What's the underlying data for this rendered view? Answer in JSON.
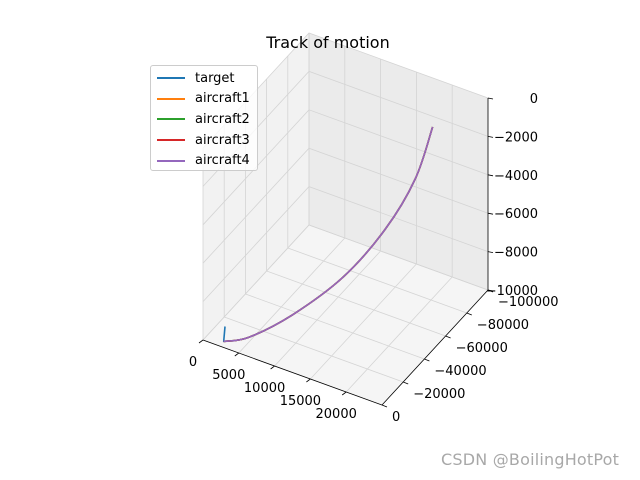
{
  "chart_data": {
    "type": "line3d",
    "title": "Track of motion",
    "xlabel": "",
    "ylabel": "",
    "zlabel": "",
    "xlim": [
      0,
      25000
    ],
    "ylim": [
      -100000,
      0
    ],
    "zlim": [
      -10000,
      0
    ],
    "x_ticks": [
      {
        "value": 0,
        "label": "0"
      },
      {
        "value": 5000,
        "label": "5000"
      },
      {
        "value": 10000,
        "label": "10000"
      },
      {
        "value": 15000,
        "label": "15000"
      },
      {
        "value": 20000,
        "label": "20000"
      }
    ],
    "y_ticks": [
      {
        "value": 0,
        "label": "0"
      },
      {
        "value": -20000,
        "label": "−20000"
      },
      {
        "value": -40000,
        "label": "−40000"
      },
      {
        "value": -60000,
        "label": "−60000"
      },
      {
        "value": -80000,
        "label": "−80000"
      },
      {
        "value": -100000,
        "label": "−100000"
      }
    ],
    "z_ticks": [
      {
        "value": 0,
        "label": "0"
      },
      {
        "value": -2000,
        "label": "−2000"
      },
      {
        "value": -4000,
        "label": "−4000"
      },
      {
        "value": -6000,
        "label": "−6000"
      },
      {
        "value": -8000,
        "label": "−8000"
      },
      {
        "value": -10000,
        "label": "−10000"
      }
    ],
    "legend_position": "upper-left",
    "series": [
      {
        "name": "target",
        "color": "#1f77b4",
        "points": [
          [
            1000,
            -14000,
            -10000
          ],
          [
            2300,
            -4000,
            -10000
          ],
          [
            6000,
            -2500,
            -9200
          ],
          [
            11000,
            -10000,
            -7800
          ],
          [
            16000,
            -24000,
            -6000
          ],
          [
            19500,
            -40000,
            -4000
          ],
          [
            21500,
            -55000,
            -2000
          ],
          [
            22000,
            -68000,
            0
          ]
        ]
      },
      {
        "name": "aircraft1",
        "color": "#ff7f0e",
        "points": [
          [
            2300,
            -4000,
            -10000
          ],
          [
            6000,
            -2500,
            -9200
          ],
          [
            11000,
            -10000,
            -7800
          ],
          [
            16000,
            -24000,
            -6000
          ],
          [
            19500,
            -40000,
            -4000
          ],
          [
            21500,
            -55000,
            -2000
          ],
          [
            22000,
            -68000,
            0
          ]
        ]
      },
      {
        "name": "aircraft2",
        "color": "#2ca02c",
        "points": [
          [
            2300,
            -4000,
            -10000
          ],
          [
            6000,
            -2500,
            -9200
          ],
          [
            11000,
            -10000,
            -7800
          ],
          [
            16000,
            -24000,
            -6000
          ],
          [
            19500,
            -40000,
            -4000
          ],
          [
            21500,
            -55000,
            -2000
          ],
          [
            22000,
            -68000,
            0
          ]
        ]
      },
      {
        "name": "aircraft3",
        "color": "#d62728",
        "points": [
          [
            2300,
            -4000,
            -10000
          ],
          [
            6000,
            -2500,
            -9200
          ],
          [
            11000,
            -10000,
            -7800
          ],
          [
            16000,
            -24000,
            -6000
          ],
          [
            19500,
            -40000,
            -4000
          ],
          [
            21500,
            -55000,
            -2000
          ],
          [
            22000,
            -68000,
            0
          ]
        ]
      },
      {
        "name": "aircraft4",
        "color": "#9467bd",
        "points": [
          [
            2300,
            -4000,
            -10000
          ],
          [
            6000,
            -2500,
            -9200
          ],
          [
            11000,
            -10000,
            -7800
          ],
          [
            16000,
            -24000,
            -6000
          ],
          [
            19500,
            -40000,
            -4000
          ],
          [
            21500,
            -55000,
            -2000
          ],
          [
            22000,
            -68000,
            0
          ]
        ]
      }
    ]
  },
  "watermark": "CSDN @BoilingHotPot"
}
